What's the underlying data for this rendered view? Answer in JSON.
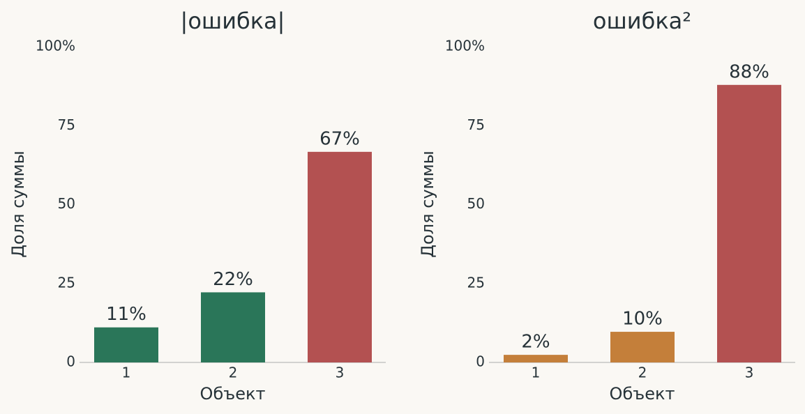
{
  "chart_data": [
    {
      "type": "bar",
      "title": "|ошибка|",
      "xlabel": "Объект",
      "ylabel": "Доля суммы",
      "categories": [
        "1",
        "2",
        "3"
      ],
      "values": [
        11.1,
        22.2,
        66.7
      ],
      "value_labels": [
        "11%",
        "22%",
        "67%"
      ],
      "colors": [
        "#2a7659",
        "#2a7659",
        "#b35151"
      ],
      "ylim": [
        0,
        100
      ],
      "yticks": [
        0,
        25,
        50,
        75,
        {
          "value": 100,
          "label": "100%"
        }
      ]
    },
    {
      "type": "bar",
      "title": "ошибка²",
      "xlabel": "Объект",
      "ylabel": "Доля суммы",
      "categories": [
        "1",
        "2",
        "3"
      ],
      "values": [
        2.4,
        9.7,
        87.9
      ],
      "value_labels": [
        "2%",
        "10%",
        "88%"
      ],
      "colors": [
        "#c47f3a",
        "#c47f3a",
        "#b35151"
      ],
      "ylim": [
        0,
        100
      ],
      "yticks": [
        0,
        25,
        50,
        75,
        {
          "value": 100,
          "label": "100%"
        }
      ]
    }
  ]
}
